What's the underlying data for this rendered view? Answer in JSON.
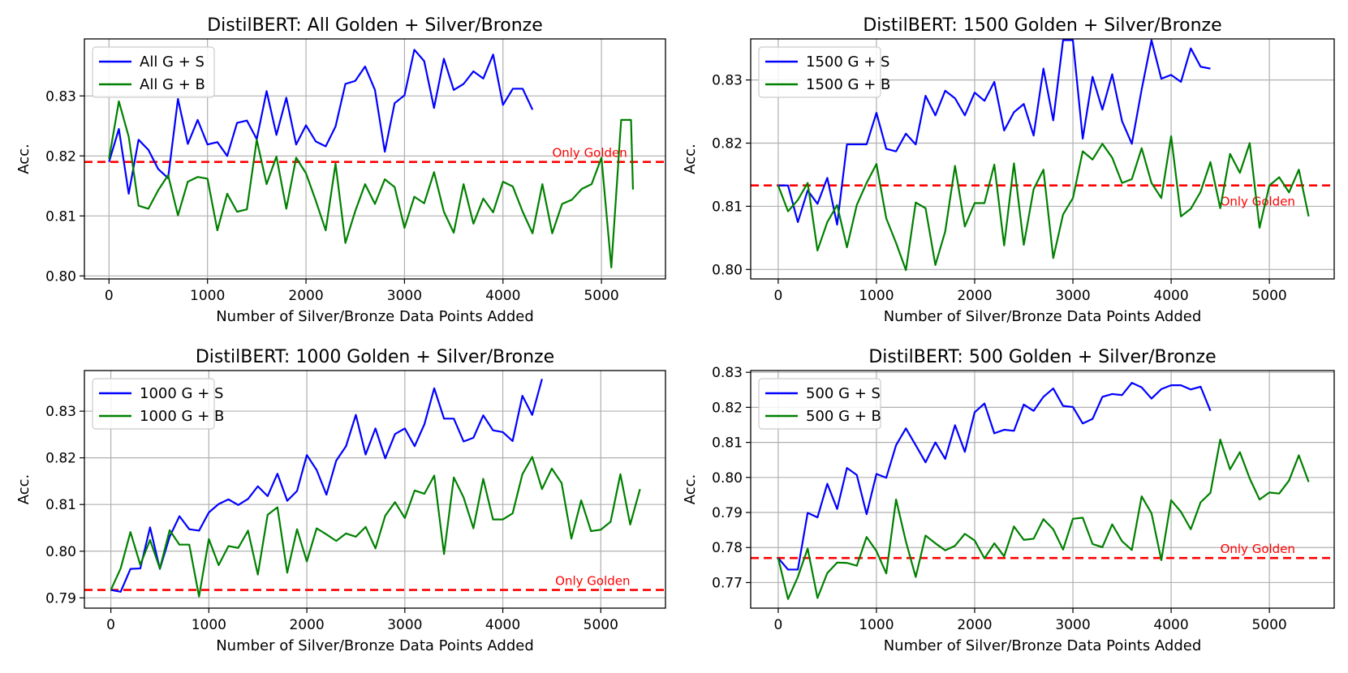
{
  "chart_data": [
    {
      "type": "line",
      "title": "DistilBERT: All Golden + Silver/Bronze",
      "xlabel": "Number of Silver/Bronze Data Points Added",
      "ylabel": "Acc.",
      "xlim": [
        -250,
        5650
      ],
      "ylim": [
        0.7995,
        0.8395
      ],
      "xticks": [
        0,
        1000,
        2000,
        3000,
        4000,
        5000
      ],
      "yticks": [
        0.8,
        0.81,
        0.82,
        0.83
      ],
      "ytick_labels": [
        "0.80",
        "0.81",
        "0.82",
        "0.83"
      ],
      "legend_position": "top-left",
      "baseline": {
        "value": 0.819,
        "label": "Only Golden",
        "label_x": 4500,
        "label_anchor": "start",
        "label_pos": "above"
      },
      "series": [
        {
          "name": "All G + S",
          "color": "#0000ff",
          "x": [
            0,
            100,
            200,
            300,
            400,
            500,
            600,
            700,
            800,
            900,
            1000,
            1100,
            1200,
            1300,
            1400,
            1500,
            1600,
            1700,
            1800,
            1900,
            2000,
            2100,
            2200,
            2300,
            2400,
            2500,
            2600,
            2700,
            2800,
            2900,
            3000,
            3100,
            3200,
            3300,
            3400,
            3500,
            3600,
            3700,
            3800,
            3900,
            4000,
            4100,
            4200,
            4300
          ],
          "y": [
            0.819,
            0.8245,
            0.8137,
            0.8227,
            0.821,
            0.8178,
            0.8163,
            0.8295,
            0.822,
            0.826,
            0.8219,
            0.8223,
            0.82,
            0.8255,
            0.8259,
            0.8228,
            0.8308,
            0.8235,
            0.8297,
            0.8219,
            0.8251,
            0.8224,
            0.8216,
            0.8249,
            0.832,
            0.8325,
            0.8349,
            0.831,
            0.8207,
            0.8288,
            0.8301,
            0.8377,
            0.8358,
            0.828,
            0.8362,
            0.831,
            0.832,
            0.8341,
            0.8329,
            0.8369,
            0.8285,
            0.8312,
            0.8312,
            0.8277
          ]
        },
        {
          "name": "All G + B",
          "color": "#008000",
          "x": [
            0,
            100,
            200,
            300,
            400,
            500,
            600,
            700,
            800,
            900,
            1000,
            1100,
            1200,
            1300,
            1400,
            1500,
            1600,
            1700,
            1800,
            1900,
            2000,
            2100,
            2200,
            2300,
            2400,
            2500,
            2600,
            2700,
            2800,
            2900,
            3000,
            3100,
            3200,
            3300,
            3400,
            3500,
            3600,
            3700,
            3800,
            3900,
            4000,
            4100,
            4200,
            4300,
            4400,
            4500,
            4600,
            4700,
            4800,
            4900,
            5000,
            5100,
            5200,
            5300,
            5320
          ],
          "y": [
            0.8195,
            0.8291,
            0.8232,
            0.8117,
            0.8112,
            0.8143,
            0.8168,
            0.8101,
            0.8157,
            0.8165,
            0.8162,
            0.8076,
            0.8137,
            0.8107,
            0.8111,
            0.8227,
            0.8153,
            0.8199,
            0.8112,
            0.8197,
            0.8171,
            0.8125,
            0.8076,
            0.8187,
            0.8055,
            0.8108,
            0.8153,
            0.812,
            0.8161,
            0.8148,
            0.808,
            0.8132,
            0.8121,
            0.8173,
            0.8107,
            0.8072,
            0.8153,
            0.8087,
            0.8129,
            0.8106,
            0.8157,
            0.8149,
            0.8107,
            0.8071,
            0.8153,
            0.8071,
            0.812,
            0.8127,
            0.8145,
            0.8153,
            0.8197,
            0.8014,
            0.826,
            0.826,
            0.8144
          ]
        }
      ]
    },
    {
      "type": "line",
      "title": "DistilBERT: 1500 Golden + Silver/Bronze",
      "xlabel": "Number of Silver/Bronze Data Points Added",
      "ylabel": "Acc.",
      "xlim": [
        -280,
        5660
      ],
      "ylim": [
        0.7985,
        0.8365
      ],
      "xticks": [
        0,
        1000,
        2000,
        3000,
        4000,
        5000
      ],
      "yticks": [
        0.8,
        0.81,
        0.82,
        0.83
      ],
      "ytick_labels": [
        "0.80",
        "0.81",
        "0.82",
        "0.83"
      ],
      "legend_position": "top-left",
      "baseline": {
        "value": 0.8133,
        "label": "Only Golden",
        "label_x": 4500,
        "label_anchor": "start",
        "label_pos": "below"
      },
      "series": [
        {
          "name": "1500 G + S",
          "color": "#0000ff",
          "x": [
            0,
            100,
            200,
            300,
            400,
            500,
            600,
            700,
            800,
            900,
            1000,
            1100,
            1200,
            1300,
            1400,
            1500,
            1600,
            1700,
            1800,
            1900,
            2000,
            2100,
            2200,
            2300,
            2400,
            2500,
            2600,
            2700,
            2800,
            2900,
            3000,
            3100,
            3200,
            3300,
            3400,
            3500,
            3600,
            3700,
            3800,
            3900,
            4000,
            4100,
            4200,
            4300,
            4400
          ],
          "y": [
            0.8133,
            0.8133,
            0.8075,
            0.8125,
            0.8104,
            0.8145,
            0.8071,
            0.8198,
            0.8198,
            0.8198,
            0.8248,
            0.8191,
            0.8187,
            0.8215,
            0.8198,
            0.8275,
            0.8244,
            0.8283,
            0.8271,
            0.8244,
            0.828,
            0.8267,
            0.8297,
            0.822,
            0.8249,
            0.8262,
            0.8212,
            0.8318,
            0.8236,
            0.8363,
            0.8363,
            0.8207,
            0.8305,
            0.8253,
            0.8309,
            0.8235,
            0.8199,
            0.8285,
            0.8363,
            0.8302,
            0.8308,
            0.8297,
            0.835,
            0.8321,
            0.8318
          ]
        },
        {
          "name": "1500 G + B",
          "color": "#008000",
          "x": [
            0,
            100,
            200,
            300,
            400,
            500,
            600,
            700,
            800,
            900,
            1000,
            1100,
            1200,
            1300,
            1400,
            1500,
            1600,
            1700,
            1800,
            1900,
            2000,
            2100,
            2200,
            2300,
            2400,
            2500,
            2600,
            2700,
            2800,
            2900,
            3000,
            3100,
            3200,
            3300,
            3400,
            3500,
            3600,
            3700,
            3800,
            3900,
            4000,
            4100,
            4200,
            4300,
            4400,
            4500,
            4600,
            4700,
            4800,
            4900,
            5000,
            5100,
            5200,
            5300,
            5400
          ],
          "y": [
            0.8133,
            0.8092,
            0.811,
            0.8137,
            0.803,
            0.8075,
            0.8102,
            0.8035,
            0.8102,
            0.8137,
            0.8167,
            0.8081,
            0.8042,
            0.7999,
            0.8106,
            0.8097,
            0.8007,
            0.806,
            0.8164,
            0.8068,
            0.8105,
            0.8105,
            0.8166,
            0.8038,
            0.8168,
            0.8039,
            0.8127,
            0.8158,
            0.8018,
            0.8087,
            0.8113,
            0.8187,
            0.8174,
            0.8199,
            0.8177,
            0.8137,
            0.8143,
            0.8192,
            0.8137,
            0.8113,
            0.8211,
            0.8084,
            0.8096,
            0.8123,
            0.817,
            0.8097,
            0.8183,
            0.8153,
            0.82,
            0.8066,
            0.8133,
            0.8146,
            0.8122,
            0.8158,
            0.8084
          ]
        }
      ]
    },
    {
      "type": "line",
      "title": "DistilBERT: 1000 Golden + Silver/Bronze",
      "xlabel": "Number of Silver/Bronze Data Points Added",
      "ylabel": "Acc.",
      "xlim": [
        -270,
        5660
      ],
      "ylim": [
        0.7878,
        0.8387
      ],
      "xticks": [
        0,
        1000,
        2000,
        3000,
        4000,
        5000
      ],
      "yticks": [
        0.79,
        0.8,
        0.81,
        0.82,
        0.83
      ],
      "ytick_labels": [
        "0.79",
        "0.80",
        "0.81",
        "0.82",
        "0.83"
      ],
      "legend_position": "top-left",
      "baseline": {
        "value": 0.7917,
        "label": "Only Golden",
        "label_x": 5300,
        "label_anchor": "end",
        "label_pos": "above"
      },
      "series": [
        {
          "name": "1000 G + S",
          "color": "#0000ff",
          "x": [
            0,
            100,
            200,
            300,
            400,
            500,
            600,
            700,
            800,
            900,
            1000,
            1100,
            1200,
            1300,
            1400,
            1500,
            1600,
            1700,
            1800,
            1900,
            2000,
            2100,
            2200,
            2300,
            2400,
            2500,
            2600,
            2700,
            2800,
            2900,
            3000,
            3100,
            3200,
            3300,
            3400,
            3500,
            3600,
            3700,
            3800,
            3900,
            4000,
            4100,
            4200,
            4300,
            4400
          ],
          "y": [
            0.7917,
            0.7913,
            0.7962,
            0.7963,
            0.8051,
            0.7962,
            0.8031,
            0.8075,
            0.8047,
            0.8044,
            0.8083,
            0.8101,
            0.8111,
            0.8099,
            0.8112,
            0.8139,
            0.8118,
            0.8166,
            0.8108,
            0.8129,
            0.8206,
            0.8174,
            0.8121,
            0.8194,
            0.8225,
            0.8292,
            0.8207,
            0.8263,
            0.8199,
            0.8251,
            0.8263,
            0.8225,
            0.8272,
            0.8349,
            0.8284,
            0.8284,
            0.8235,
            0.8243,
            0.8291,
            0.8259,
            0.8255,
            0.8236,
            0.8333,
            0.8292,
            0.8369
          ]
        },
        {
          "name": "1000 G + B",
          "color": "#008000",
          "x": [
            0,
            100,
            200,
            300,
            400,
            500,
            600,
            700,
            800,
            900,
            1000,
            1100,
            1200,
            1300,
            1400,
            1500,
            1600,
            1700,
            1800,
            1900,
            2000,
            2100,
            2200,
            2300,
            2400,
            2500,
            2600,
            2700,
            2800,
            2900,
            3000,
            3100,
            3200,
            3300,
            3400,
            3500,
            3600,
            3700,
            3800,
            3900,
            4000,
            4100,
            4200,
            4300,
            4400,
            4500,
            4600,
            4700,
            4800,
            4900,
            5000,
            5100,
            5200,
            5300,
            5400
          ],
          "y": [
            0.7917,
            0.7963,
            0.8041,
            0.7971,
            0.8024,
            0.7963,
            0.8045,
            0.8014,
            0.8014,
            0.7903,
            0.8026,
            0.797,
            0.8011,
            0.8007,
            0.8044,
            0.795,
            0.8078,
            0.8094,
            0.7954,
            0.8047,
            0.7978,
            0.8049,
            0.8036,
            0.8022,
            0.8038,
            0.8031,
            0.8052,
            0.8006,
            0.8076,
            0.8105,
            0.8071,
            0.813,
            0.8123,
            0.8162,
            0.7994,
            0.8158,
            0.8115,
            0.8049,
            0.8155,
            0.8068,
            0.8068,
            0.8081,
            0.8165,
            0.8202,
            0.8133,
            0.8177,
            0.8146,
            0.8027,
            0.8109,
            0.8043,
            0.8046,
            0.8063,
            0.8165,
            0.8057,
            0.8133
          ]
        }
      ]
    },
    {
      "type": "line",
      "title": "DistilBERT: 500 Golden + Silver/Bronze",
      "xlabel": "Number of Silver/Bronze Data Points Added",
      "ylabel": "Acc.",
      "xlim": [
        -280,
        5660
      ],
      "ylim": [
        0.7627,
        0.8305
      ],
      "xticks": [
        0,
        1000,
        2000,
        3000,
        4000,
        5000
      ],
      "yticks": [
        0.77,
        0.78,
        0.79,
        0.8,
        0.81,
        0.82,
        0.83
      ],
      "ytick_labels": [
        "0.77",
        "0.78",
        "0.79",
        "0.80",
        "0.81",
        "0.82",
        "0.83"
      ],
      "legend_position": "top-left",
      "baseline": {
        "value": 0.777,
        "label": "Only Golden",
        "label_x": 4500,
        "label_anchor": "start",
        "label_pos": "above"
      },
      "series": [
        {
          "name": "500 G + S",
          "color": "#0000ff",
          "x": [
            0,
            100,
            200,
            300,
            400,
            500,
            600,
            700,
            800,
            900,
            1000,
            1100,
            1200,
            1300,
            1400,
            1500,
            1600,
            1700,
            1800,
            1900,
            2000,
            2100,
            2200,
            2300,
            2400,
            2500,
            2600,
            2700,
            2800,
            2900,
            3000,
            3100,
            3200,
            3300,
            3400,
            3500,
            3600,
            3700,
            3800,
            3900,
            4000,
            4100,
            4200,
            4300,
            4400
          ],
          "y": [
            0.777,
            0.7737,
            0.7737,
            0.7899,
            0.7886,
            0.7982,
            0.791,
            0.8027,
            0.8007,
            0.7895,
            0.801,
            0.7999,
            0.8092,
            0.814,
            0.8092,
            0.8043,
            0.81,
            0.8053,
            0.8149,
            0.8073,
            0.8186,
            0.8211,
            0.8126,
            0.8136,
            0.8133,
            0.8208,
            0.819,
            0.823,
            0.8254,
            0.8204,
            0.8201,
            0.8154,
            0.8167,
            0.823,
            0.8238,
            0.8235,
            0.827,
            0.8257,
            0.8225,
            0.8252,
            0.8263,
            0.8263,
            0.8251,
            0.8259,
            0.819
          ]
        },
        {
          "name": "500 G + B",
          "color": "#008000",
          "x": [
            0,
            100,
            200,
            300,
            400,
            500,
            600,
            700,
            800,
            900,
            1000,
            1100,
            1200,
            1300,
            1400,
            1500,
            1600,
            1700,
            1800,
            1900,
            2000,
            2100,
            2200,
            2300,
            2400,
            2500,
            2600,
            2700,
            2800,
            2900,
            3000,
            3100,
            3200,
            3300,
            3400,
            3500,
            3600,
            3700,
            3800,
            3900,
            4000,
            4100,
            4200,
            4300,
            4400,
            4500,
            4600,
            4700,
            4800,
            4900,
            5000,
            5100,
            5200,
            5300,
            5400
          ],
          "y": [
            0.777,
            0.7653,
            0.7716,
            0.7797,
            0.7656,
            0.7727,
            0.7757,
            0.7756,
            0.7748,
            0.783,
            0.779,
            0.7726,
            0.7937,
            0.7817,
            0.7716,
            0.7834,
            0.7812,
            0.7792,
            0.7805,
            0.7839,
            0.782,
            0.7769,
            0.7812,
            0.7775,
            0.786,
            0.7822,
            0.7825,
            0.7881,
            0.7852,
            0.7794,
            0.7882,
            0.7885,
            0.781,
            0.7801,
            0.7866,
            0.7818,
            0.7793,
            0.7946,
            0.7898,
            0.7764,
            0.7935,
            0.7902,
            0.7852,
            0.7929,
            0.7956,
            0.8108,
            0.8023,
            0.8072,
            0.7997,
            0.7937,
            0.7957,
            0.7954,
            0.7991,
            0.8063,
            0.7987
          ]
        }
      ]
    }
  ]
}
